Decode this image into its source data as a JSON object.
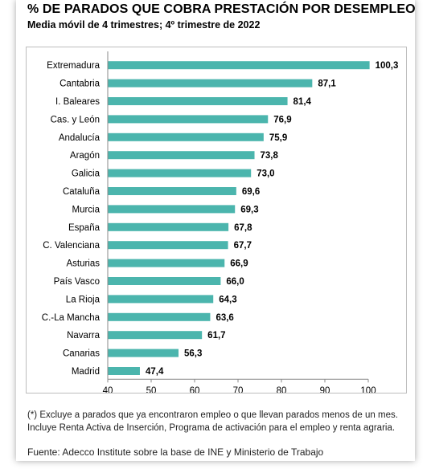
{
  "header": {
    "title": "% DE PARADOS QUE COBRA PRESTACIÓN POR DESEMPLEO",
    "subtitle": "Media móvil de 4 trimestres; 4º trimestre de 2022"
  },
  "footer": {
    "note_line1": "(*) Excluye a parados que ya encontraron empleo o que llevan parados menos de un mes.",
    "note_line2": "Incluye Renta Activa de Inserción, Programa de activación para el empleo y renta agraria.",
    "source": "Fuente: Adecco Institute sobre la base de INE y Ministerio de Trabajo"
  },
  "chart_data": {
    "type": "bar",
    "orientation": "horizontal",
    "categories": [
      "Extremadura",
      "Cantabria",
      "I. Baleares",
      "Cas. y León",
      "Andalucía",
      "Aragón",
      "Galicia",
      "Cataluña",
      "Murcia",
      "España",
      "C. Valenciana",
      "Asturias",
      "País Vasco",
      "La Rioja",
      "C.-La Mancha",
      "Navarra",
      "Canarias",
      "Madrid"
    ],
    "values": [
      100.3,
      87.1,
      81.4,
      76.9,
      75.9,
      73.8,
      73.0,
      69.6,
      69.3,
      67.8,
      67.7,
      66.9,
      66.0,
      64.3,
      63.6,
      61.7,
      56.3,
      47.4
    ],
    "value_labels": [
      "100,3",
      "87,1",
      "81,4",
      "76,9",
      "75,9",
      "73,8",
      "73,0",
      "69,6",
      "69,3",
      "67,8",
      "67,7",
      "66,9",
      "66,0",
      "64,3",
      "63,6",
      "61,7",
      "56,3",
      "47,4"
    ],
    "xlim": [
      40,
      100
    ],
    "xticks": [
      "40",
      "50",
      "60",
      "70",
      "80",
      "90",
      "100"
    ],
    "grid": false,
    "bar_color": "#4bb5ad"
  }
}
